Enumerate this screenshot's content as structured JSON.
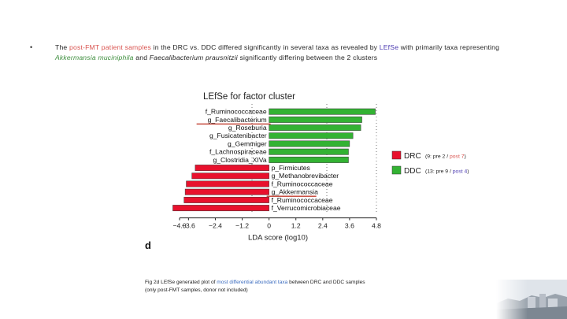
{
  "slide": {
    "bullet": "•",
    "summary_parts": [
      {
        "text": "The ",
        "style": "plain"
      },
      {
        "text": "post-FMT patient samples",
        "style": "red"
      },
      {
        "text": " in the DRC vs. DDC differed significantly in several taxa as revealed by ",
        "style": "plain"
      },
      {
        "text": "LEfSe",
        "style": "purple"
      },
      {
        "text": " with primarily taxa representing ",
        "style": "plain"
      },
      {
        "text": "Akkermansia muciniphila",
        "style": "green"
      },
      {
        "text": " and ",
        "style": "plain"
      },
      {
        "text": "Faecalibacterium prausnitzii",
        "style": "italic"
      },
      {
        "text": " significantly differing between the 2 clusters",
        "style": "plain"
      }
    ],
    "panel_letter": "d",
    "caption_parts": [
      {
        "text": "Fig 2d LEfSe generated plot of ",
        "style": "plain"
      },
      {
        "text": "most differential abundant taxa",
        "style": "blue"
      },
      {
        "text": " between DRC and DDC samples",
        "style": "plain"
      }
    ],
    "caption_line2": "(only post-FMT samples, donor not included)"
  },
  "chart_data": {
    "type": "bar",
    "title": "LEfSe for factor cluster",
    "xlabel": "LDA score (log10)",
    "xlim": [
      -4.0,
      4.8
    ],
    "xticks": [
      "−4.0",
      "−3.6",
      "−2.4",
      "−1.2",
      "0",
      "1.2",
      "2.4",
      "3.6",
      "4.8"
    ],
    "xtick_values": [
      -4.0,
      -3.6,
      -2.4,
      -1.2,
      0,
      1.2,
      2.4,
      3.6,
      4.8
    ],
    "series": [
      {
        "name": "DDC",
        "color": "#33b233",
        "legend_detail": "(13: pre 9 / post 4)",
        "detail_pre": "(13: pre 9 / ",
        "detail_post": "post 4",
        "detail_close": ")"
      },
      {
        "name": "DRC",
        "color": "#e8112d",
        "legend_detail": "(9: pre 2 / post 7)",
        "detail_pre": "(9: pre 2 / ",
        "detail_post": "post 7",
        "detail_close": ")"
      }
    ],
    "bars": [
      {
        "label": "f_Ruminococcaceae",
        "value": 4.75,
        "group": "DDC",
        "underline": false
      },
      {
        "label": "g_Faecalibacterium",
        "value": 4.15,
        "group": "DDC",
        "underline": true
      },
      {
        "label": "g_Roseburia",
        "value": 4.1,
        "group": "DDC",
        "underline": false
      },
      {
        "label": "g_Fusicatenibacter",
        "value": 3.75,
        "group": "DDC",
        "underline": false
      },
      {
        "label": "g_Gemmiger",
        "value": 3.6,
        "group": "DDC",
        "underline": false
      },
      {
        "label": "f_Lachnospiraceae",
        "value": 3.55,
        "group": "DDC",
        "underline": false
      },
      {
        "label": "g_Clostridia_XIVa",
        "value": 3.55,
        "group": "DDC",
        "underline": false
      },
      {
        "label": "p_Firmicutes",
        "value": -3.3,
        "group": "DRC",
        "underline": false
      },
      {
        "label": "g_Methanobrevibacter",
        "value": -3.45,
        "group": "DRC",
        "underline": false
      },
      {
        "label": "f_Ruminococcaceae",
        "value": -3.7,
        "group": "DRC",
        "underline": false
      },
      {
        "label": "g_Akkermansia",
        "value": -3.75,
        "group": "DRC",
        "underline": true
      },
      {
        "label": "f_Ruminococcaceae",
        "value": -3.8,
        "group": "DRC",
        "underline": false
      },
      {
        "label": "f_Verrucomicrobiaceae",
        "value": -4.3,
        "group": "DRC",
        "underline": false
      }
    ]
  }
}
